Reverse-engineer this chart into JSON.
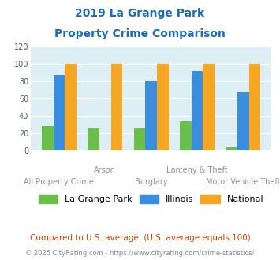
{
  "title_line1": "2019 La Grange Park",
  "title_line2": "Property Crime Comparison",
  "categories": [
    "All Property Crime",
    "Arson",
    "Burglary",
    "Larceny & Theft",
    "Motor Vehicle Theft"
  ],
  "la_grange_park": [
    29,
    26,
    26,
    34,
    4
  ],
  "illinois": [
    88,
    0,
    80,
    92,
    68
  ],
  "national": [
    100,
    100,
    100,
    100,
    100
  ],
  "colors": {
    "la_grange_park": "#6abf4b",
    "illinois": "#3b8de0",
    "national": "#f5a623"
  },
  "ylim": [
    0,
    120
  ],
  "yticks": [
    0,
    20,
    40,
    60,
    80,
    100,
    120
  ],
  "title_color": "#1a6ab5",
  "xlabel_color": "#9b8a9b",
  "plot_bg_color": "#ddeef5",
  "footnote1": "Compared to U.S. average. (U.S. average equals 100)",
  "footnote2": "© 2025 CityRating.com - https://www.cityrating.com/crime-statistics/",
  "footnote1_color": "#cc4400",
  "footnote2_color": "#888888",
  "legend_labels": [
    "La Grange Park",
    "Illinois",
    "National"
  ],
  "stagger_upper": [
    1,
    3
  ],
  "stagger_lower": [
    0,
    2,
    4
  ]
}
